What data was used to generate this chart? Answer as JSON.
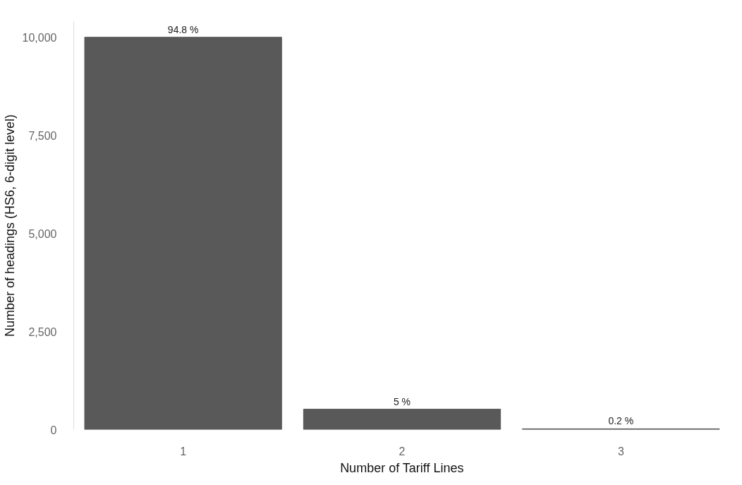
{
  "chart_data": {
    "type": "bar",
    "xlabel": "Number of Tariff Lines",
    "ylabel": "Number of headings (HS6, 6-digit level)",
    "categories": [
      "1",
      "2",
      "3"
    ],
    "values": [
      10000,
      520,
      20
    ],
    "annotations": [
      {
        "text": "94.8 %",
        "x": "1",
        "y": 10000
      },
      {
        "text": "5 %",
        "x": "2",
        "y": 520
      },
      {
        "text": "0.2 %",
        "x": "3",
        "y": 20
      }
    ],
    "color": "#595959",
    "ylim": [
      0,
      10400
    ],
    "yticks": [
      {
        "value": 0,
        "label": "0"
      },
      {
        "value": 2500,
        "label": "2,500"
      },
      {
        "value": 5000,
        "label": "5,000"
      },
      {
        "value": 7500,
        "label": "7,500"
      },
      {
        "value": 10000,
        "label": "10,000"
      }
    ],
    "grid": false
  }
}
